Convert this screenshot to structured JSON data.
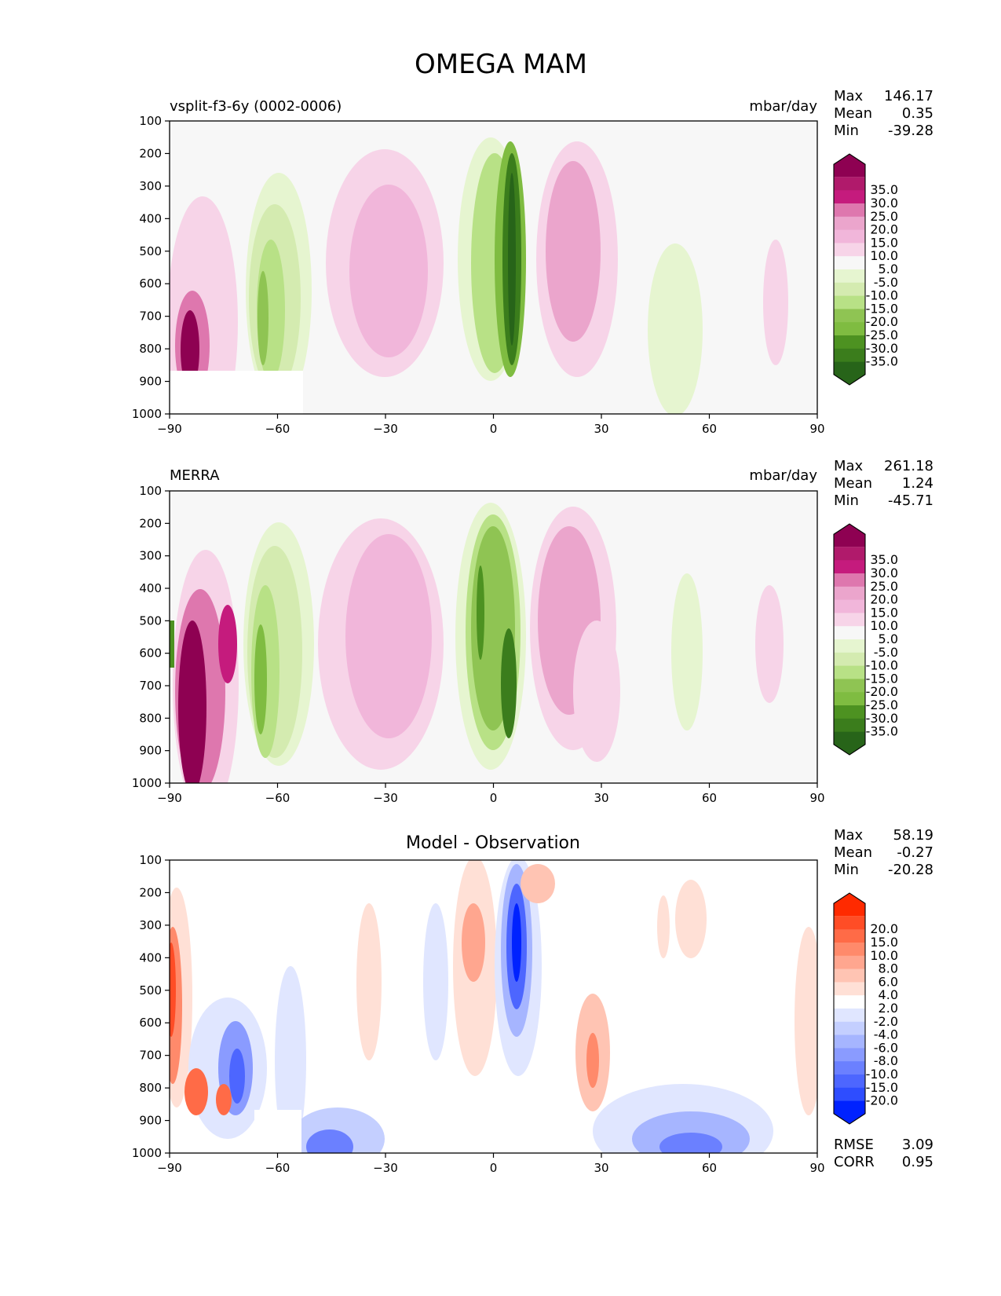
{
  "suptitle": "OMEGA MAM",
  "x_ticks": [
    "−90",
    "−60",
    "−30",
    "0",
    "30",
    "60",
    "90"
  ],
  "y_ticks": [
    "100",
    "200",
    "300",
    "400",
    "500",
    "600",
    "700",
    "800",
    "900",
    "1000"
  ],
  "chart_data": [
    {
      "type": "heatmap",
      "left_title": "vsplit-f3-6y (0002-0006)",
      "units": "mbar/day",
      "xlim": [
        -90,
        90
      ],
      "ylim": [
        1000,
        100
      ],
      "stats": [
        {
          "label": "Max",
          "value": "146.17"
        },
        {
          "label": "Mean",
          "value": "0.35"
        },
        {
          "label": "Min",
          "value": "-39.28"
        }
      ],
      "colorbar": {
        "levels": [
          "35.0",
          "30.0",
          "25.0",
          "20.0",
          "15.0",
          "10.0",
          "5.0",
          "-5.0",
          "-10.0",
          "-15.0",
          "-20.0",
          "-25.0",
          "-30.0",
          "-35.0"
        ],
        "colors": [
          "#8e0152",
          "#b01a6b",
          "#c51b7d",
          "#de77ae",
          "#eba5cc",
          "#f1b6da",
          "#f7d4e8",
          "#f7f7f7",
          "#e6f5d0",
          "#d4ebb0",
          "#b8e186",
          "#8fc453",
          "#7fbc41",
          "#4d9221",
          "#3b7d1c",
          "#276419"
        ]
      },
      "features": [
        {
          "lat": -85,
          "p": 780,
          "value": 35
        },
        {
          "lat": -72,
          "p": 550,
          "value": 5
        },
        {
          "lat": -63,
          "p": 580,
          "value": -15
        },
        {
          "lat": -30,
          "p": 520,
          "value": 10
        },
        {
          "lat": -5,
          "p": 500,
          "value": -15
        },
        {
          "lat": 5,
          "p": 550,
          "value": -35
        },
        {
          "lat": 22,
          "p": 450,
          "value": 15
        },
        {
          "lat": 55,
          "p": 720,
          "value": -5
        },
        {
          "lat": 80,
          "p": 650,
          "value": 5
        }
      ]
    },
    {
      "type": "heatmap",
      "left_title": "MERRA",
      "units": "mbar/day",
      "xlim": [
        -90,
        90
      ],
      "ylim": [
        1000,
        100
      ],
      "stats": [
        {
          "label": "Max",
          "value": "261.18"
        },
        {
          "label": "Mean",
          "value": "1.24"
        },
        {
          "label": "Min",
          "value": "-45.71"
        }
      ],
      "colorbar": {
        "levels": [
          "35.0",
          "30.0",
          "25.0",
          "20.0",
          "15.0",
          "10.0",
          "5.0",
          "-5.0",
          "-10.0",
          "-15.0",
          "-20.0",
          "-25.0",
          "-30.0",
          "-35.0"
        ],
        "colors": [
          "#8e0152",
          "#b01a6b",
          "#c51b7d",
          "#de77ae",
          "#eba5cc",
          "#f1b6da",
          "#f7d4e8",
          "#f7f7f7",
          "#e6f5d0",
          "#d4ebb0",
          "#b8e186",
          "#8fc453",
          "#7fbc41",
          "#4d9221",
          "#3b7d1c",
          "#276419"
        ]
      },
      "features": [
        {
          "lat": -83,
          "p": 820,
          "value": 35
        },
        {
          "lat": -75,
          "p": 650,
          "value": 10
        },
        {
          "lat": -63,
          "p": 600,
          "value": -15
        },
        {
          "lat": -30,
          "p": 550,
          "value": 10
        },
        {
          "lat": 0,
          "p": 520,
          "value": -25
        },
        {
          "lat": 22,
          "p": 450,
          "value": 15
        },
        {
          "lat": 60,
          "p": 650,
          "value": -5
        },
        {
          "lat": 80,
          "p": 700,
          "value": 5
        }
      ]
    },
    {
      "type": "heatmap",
      "title": "Model - Observation",
      "xlim": [
        -90,
        90
      ],
      "ylim": [
        1000,
        100
      ],
      "stats": [
        {
          "label": "Max",
          "value": "58.19"
        },
        {
          "label": "Mean",
          "value": "-0.27"
        },
        {
          "label": "Min",
          "value": "-20.28"
        }
      ],
      "extra_stats": [
        {
          "label": "RMSE",
          "value": "3.09"
        },
        {
          "label": "CORR",
          "value": "0.95"
        }
      ],
      "colorbar": {
        "levels": [
          "20.0",
          "15.0",
          "10.0",
          "8.0",
          "6.0",
          "4.0",
          "2.0",
          "-2.0",
          "-4.0",
          "-6.0",
          "-8.0",
          "-10.0",
          "-15.0",
          "-20.0"
        ],
        "colors": [
          "#ff2a00",
          "#ff4d26",
          "#ff6b47",
          "#ff8a6b",
          "#ffa68f",
          "#ffc4b3",
          "#ffe0d6",
          "#ffffff",
          "#e0e6ff",
          "#c4cfff",
          "#a6b5ff",
          "#8a9bff",
          "#6b80ff",
          "#4d66ff",
          "#2e4dff",
          "#0022ff"
        ]
      },
      "features": [
        {
          "lat": -88,
          "p": 450,
          "value": 6
        },
        {
          "lat": -72,
          "p": 760,
          "value": -10
        },
        {
          "lat": -45,
          "p": 950,
          "value": -10
        },
        {
          "lat": -8,
          "p": 400,
          "value": 4
        },
        {
          "lat": 6,
          "p": 380,
          "value": -20
        },
        {
          "lat": 28,
          "p": 780,
          "value": 4
        },
        {
          "lat": 55,
          "p": 950,
          "value": -8
        },
        {
          "lat": 88,
          "p": 600,
          "value": 2
        }
      ]
    }
  ]
}
